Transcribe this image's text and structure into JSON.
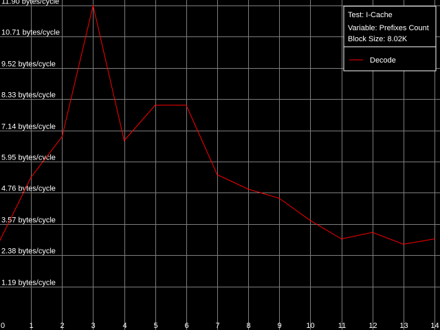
{
  "chart_data": {
    "type": "line",
    "title": "",
    "xlabel": "",
    "ylabel": "",
    "x": [
      0,
      1,
      2,
      3,
      4,
      5,
      6,
      7,
      8,
      9,
      10,
      11,
      12,
      13,
      14
    ],
    "xticks": [
      "0",
      "1",
      "2",
      "3",
      "4",
      "5",
      "6",
      "7",
      "8",
      "9",
      "10",
      "11",
      "12",
      "13",
      "14"
    ],
    "yticks": [
      "1.19 bytes/cycle",
      "2.38 bytes/cycle",
      "3.57 bytes/cycle",
      "4.76 bytes/cycle",
      "5.95 bytes/cycle",
      "7.14 bytes/cycle",
      "8.33 bytes/cycle",
      "9.52 bytes/cycle",
      "10.71 bytes/cycle",
      "11.90 bytes/cycle"
    ],
    "ytick_values": [
      1.19,
      2.38,
      3.57,
      4.76,
      5.95,
      7.14,
      8.33,
      9.52,
      10.71,
      11.9
    ],
    "xlim": [
      0,
      14
    ],
    "ylim": [
      0,
      11.9
    ],
    "grid": true,
    "legend_position": "top-right",
    "series": [
      {
        "name": "Decode",
        "color": "#ff0000",
        "values": [
          2.95,
          5.35,
          6.9,
          11.9,
          6.75,
          8.1,
          8.1,
          5.45,
          4.9,
          4.55,
          3.7,
          3.0,
          3.25,
          2.8,
          3.0
        ]
      }
    ],
    "info": {
      "test": "Test: I-Cache",
      "variable": "Variable: Prefixes Count",
      "block_size": "Block Size: 8.02K"
    }
  }
}
